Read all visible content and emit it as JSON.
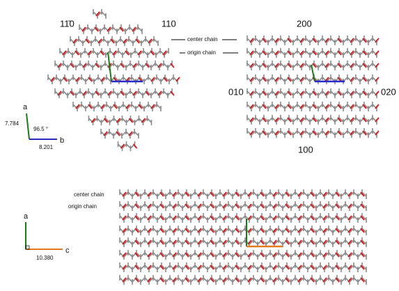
{
  "panel_ab": {
    "left_hkl": [
      "11̄0",
      "110"
    ],
    "right_hkl": {
      "top": "200",
      "left": "010",
      "right": "020",
      "bottom": "100"
    },
    "center_chain": "center chain",
    "origin_chain": "origin chain",
    "axes": {
      "a": "a",
      "b": "b",
      "a_length": "7.784",
      "angle": "96.5 °",
      "b_length": "8.201"
    }
  },
  "panel_ac": {
    "center_chain": "center chain",
    "origin_chain": "origin chain",
    "axes": {
      "a": "a",
      "c": "c",
      "c_length": "10.380"
    }
  }
}
